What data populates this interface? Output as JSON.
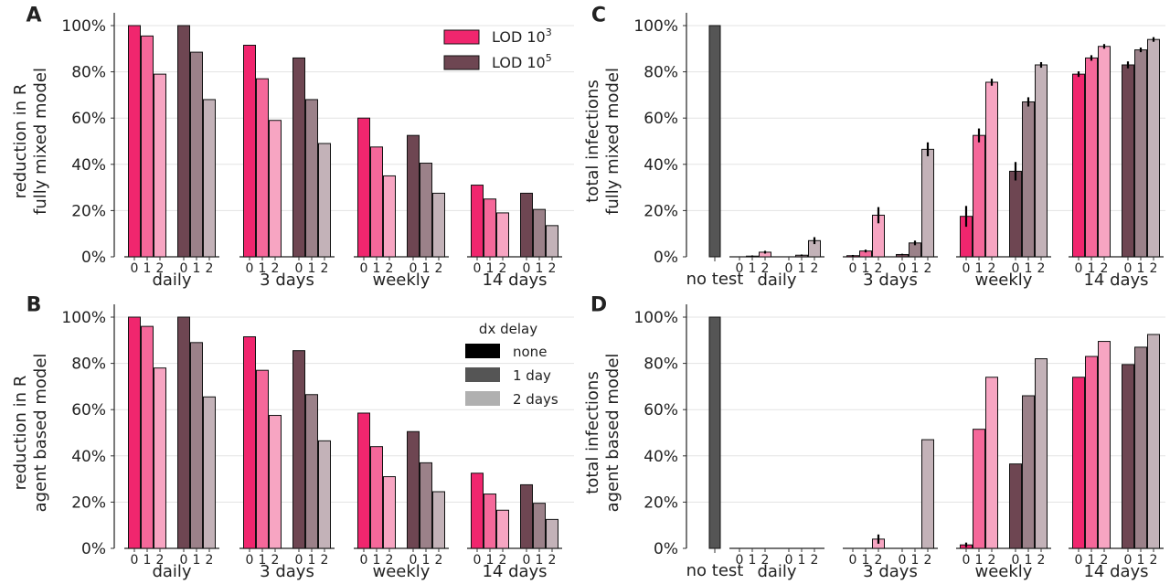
{
  "colors": {
    "lod3": [
      "#f0266e",
      "#f5689a",
      "#f7a5c2"
    ],
    "lod5": [
      "#6e4652",
      "#9b8189",
      "#c3b2b8"
    ],
    "notest": "#555555",
    "delay": [
      "#000000",
      "#555555",
      "#b0b0b0"
    ],
    "grid": "#e3e3e3",
    "edge": "#111111"
  },
  "panel_letters": [
    "A",
    "B",
    "C",
    "D"
  ],
  "legend_lod": {
    "lod3": "LOD 10",
    "lod3_exp": "3",
    "lod5": "LOD 10",
    "lod5_exp": "5"
  },
  "legend_delay": {
    "title": "dx delay",
    "items": [
      "none",
      "1 day",
      "2 days"
    ]
  },
  "chart_data": [
    {
      "type": "bar",
      "panel": "A",
      "ylabel_line1": "reduction in R",
      "ylabel_line2": "fully mixed model",
      "ylim": [
        0,
        100
      ],
      "yticks": [
        "0%",
        "20%",
        "40%",
        "60%",
        "80%",
        "100%"
      ],
      "delay_ticks": [
        "0",
        "1",
        "2"
      ],
      "groups": [
        "daily",
        "3 days",
        "weekly",
        "14 days"
      ],
      "series": [
        {
          "name": "LOD 10^3",
          "values": [
            [
              100,
              95.5,
              79
            ],
            [
              91.5,
              77,
              59
            ],
            [
              60,
              47.5,
              35
            ],
            [
              31,
              25,
              19
            ]
          ]
        },
        {
          "name": "LOD 10^5",
          "values": [
            [
              100,
              88.5,
              68
            ],
            [
              86,
              68,
              49
            ],
            [
              52.5,
              40.5,
              27.5
            ],
            [
              27.5,
              20.5,
              13.5
            ]
          ]
        }
      ]
    },
    {
      "type": "bar",
      "panel": "B",
      "ylabel_line1": "reduction in R",
      "ylabel_line2": "agent based model",
      "ylim": [
        0,
        100
      ],
      "yticks": [
        "0%",
        "20%",
        "40%",
        "60%",
        "80%",
        "100%"
      ],
      "delay_ticks": [
        "0",
        "1",
        "2"
      ],
      "groups": [
        "daily",
        "3 days",
        "weekly",
        "14 days"
      ],
      "series": [
        {
          "name": "LOD 10^3",
          "values": [
            [
              100,
              96,
              78
            ],
            [
              91.5,
              77,
              57.5
            ],
            [
              58.5,
              44,
              31
            ],
            [
              32.5,
              23.5,
              16.5
            ]
          ]
        },
        {
          "name": "LOD 10^5",
          "values": [
            [
              100,
              89,
              65.5
            ],
            [
              85.5,
              66.5,
              46.5
            ],
            [
              50.5,
              37,
              24.5
            ],
            [
              27.5,
              19.5,
              12.5
            ]
          ]
        }
      ]
    },
    {
      "type": "bar",
      "panel": "C",
      "ylabel_line1": "total infections",
      "ylabel_line2": "fully mixed model",
      "ylim": [
        0,
        100
      ],
      "yticks": [
        "0%",
        "20%",
        "40%",
        "60%",
        "80%",
        "100%"
      ],
      "delay_ticks": [
        "0",
        "1",
        "2"
      ],
      "groups": [
        "daily",
        "3 days",
        "weekly",
        "14 days"
      ],
      "baseline": {
        "label": "no test",
        "value": 100
      },
      "series": [
        {
          "name": "LOD 10^3",
          "values": [
            [
              0,
              0.3,
              2
            ],
            [
              0.5,
              2.5,
              18
            ],
            [
              17.5,
              52.5,
              75.5
            ],
            [
              79,
              86,
              91
            ]
          ],
          "errors": [
            [
              0,
              0.3,
              0.6
            ],
            [
              0.3,
              0.6,
              3.5
            ],
            [
              4.5,
              3,
              1.5
            ],
            [
              1.2,
              1.2,
              1
            ]
          ]
        },
        {
          "name": "LOD 10^5",
          "values": [
            [
              0,
              0.7,
              7
            ],
            [
              1,
              6,
              46.5
            ],
            [
              37,
              67,
              83
            ],
            [
              83,
              89.5,
              94
            ]
          ],
          "errors": [
            [
              0,
              0.3,
              1.5
            ],
            [
              0.3,
              1,
              3
            ],
            [
              4,
              2,
              1.2
            ],
            [
              1.5,
              1,
              1
            ]
          ]
        }
      ]
    },
    {
      "type": "bar",
      "panel": "D",
      "ylabel_line1": "total infections",
      "ylabel_line2": "agent based model",
      "ylim": [
        0,
        100
      ],
      "yticks": [
        "0%",
        "20%",
        "40%",
        "60%",
        "80%",
        "100%"
      ],
      "delay_ticks": [
        "0",
        "1",
        "2"
      ],
      "groups": [
        "daily",
        "3 days",
        "weekly",
        "14 days"
      ],
      "baseline": {
        "label": "no test",
        "value": 100
      },
      "series": [
        {
          "name": "LOD 10^3",
          "values": [
            [
              0,
              0,
              0
            ],
            [
              0,
              0,
              4
            ],
            [
              1.5,
              51.5,
              74
            ],
            [
              74,
              83,
              89.5
            ]
          ],
          "errors": [
            [
              0,
              0,
              0
            ],
            [
              0,
              0,
              2
            ],
            [
              1,
              0,
              0
            ],
            [
              0,
              0,
              0
            ]
          ]
        },
        {
          "name": "LOD 10^5",
          "values": [
            [
              0,
              0,
              0
            ],
            [
              0,
              0,
              47
            ],
            [
              36.5,
              66,
              82
            ],
            [
              79.5,
              87,
              92.5
            ]
          ],
          "errors": [
            [
              0,
              0,
              0
            ],
            [
              0,
              0,
              0
            ],
            [
              0,
              0,
              0
            ],
            [
              0,
              0,
              0
            ]
          ]
        }
      ]
    }
  ]
}
